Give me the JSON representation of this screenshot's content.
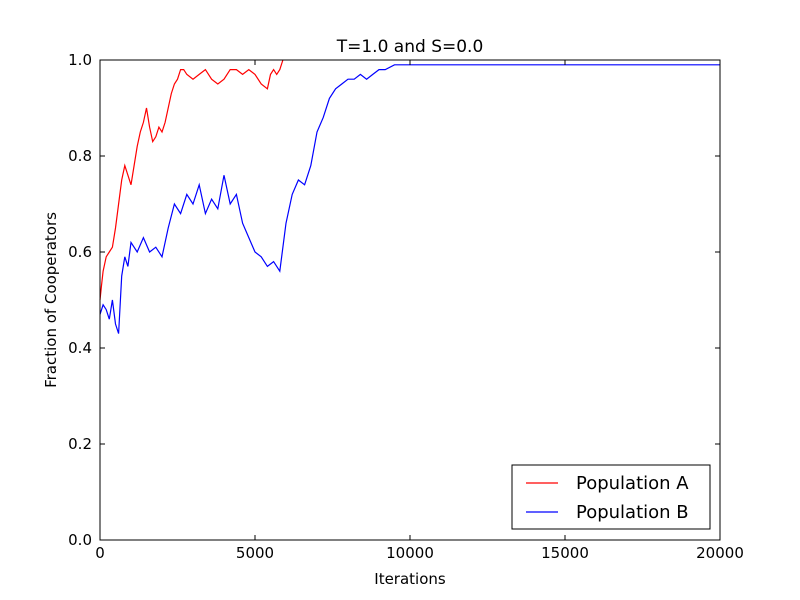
{
  "chart_data": {
    "type": "line",
    "title": "T=1.0 and S=0.0",
    "xlabel": "Iterations",
    "ylabel": "Fraction of Cooperators",
    "xlim": [
      0,
      20000
    ],
    "ylim": [
      0.0,
      1.0
    ],
    "xticks": [
      0,
      5000,
      10000,
      15000,
      20000
    ],
    "xtick_labels": [
      "0",
      "5000",
      "10000",
      "15000",
      "20000"
    ],
    "yticks": [
      0.0,
      0.2,
      0.4,
      0.6,
      0.8,
      1.0
    ],
    "ytick_labels": [
      "0.0",
      "0.2",
      "0.4",
      "0.6",
      "0.8",
      "1.0"
    ],
    "grid": false,
    "legend": "lower-right",
    "series": [
      {
        "name": "Population A",
        "color": "#ff0000",
        "x": [
          0,
          50,
          100,
          200,
          300,
          400,
          500,
          600,
          700,
          800,
          900,
          1000,
          1100,
          1200,
          1300,
          1400,
          1500,
          1600,
          1700,
          1800,
          1900,
          2000,
          2100,
          2200,
          2300,
          2400,
          2500,
          2600,
          2700,
          2800,
          3000,
          3200,
          3400,
          3600,
          3800,
          4000,
          4200,
          4400,
          4600,
          4800,
          5000,
          5200,
          5400,
          5500,
          5600,
          5700,
          5800,
          5900
        ],
        "y": [
          0.5,
          0.53,
          0.56,
          0.59,
          0.6,
          0.61,
          0.65,
          0.7,
          0.75,
          0.78,
          0.76,
          0.74,
          0.78,
          0.82,
          0.85,
          0.87,
          0.9,
          0.86,
          0.83,
          0.84,
          0.86,
          0.85,
          0.87,
          0.9,
          0.93,
          0.95,
          0.96,
          0.98,
          0.98,
          0.97,
          0.96,
          0.97,
          0.98,
          0.96,
          0.95,
          0.96,
          0.98,
          0.98,
          0.97,
          0.98,
          0.97,
          0.95,
          0.94,
          0.97,
          0.98,
          0.97,
          0.98,
          1.0
        ]
      },
      {
        "name": "Population B",
        "color": "#0000ff",
        "x": [
          0,
          100,
          200,
          300,
          400,
          500,
          600,
          700,
          800,
          900,
          1000,
          1200,
          1400,
          1600,
          1800,
          2000,
          2200,
          2400,
          2600,
          2800,
          3000,
          3200,
          3400,
          3600,
          3800,
          4000,
          4200,
          4400,
          4600,
          4800,
          5000,
          5200,
          5400,
          5600,
          5800,
          6000,
          6200,
          6400,
          6600,
          6800,
          7000,
          7200,
          7400,
          7600,
          7800,
          8000,
          8200,
          8400,
          8600,
          8800,
          9000,
          9200,
          9500,
          20000
        ],
        "y": [
          0.47,
          0.49,
          0.48,
          0.46,
          0.5,
          0.45,
          0.43,
          0.55,
          0.59,
          0.57,
          0.62,
          0.6,
          0.63,
          0.6,
          0.61,
          0.59,
          0.65,
          0.7,
          0.68,
          0.72,
          0.7,
          0.74,
          0.68,
          0.71,
          0.69,
          0.76,
          0.7,
          0.72,
          0.66,
          0.63,
          0.6,
          0.59,
          0.57,
          0.58,
          0.56,
          0.66,
          0.72,
          0.75,
          0.74,
          0.78,
          0.85,
          0.88,
          0.92,
          0.94,
          0.95,
          0.96,
          0.96,
          0.97,
          0.96,
          0.97,
          0.98,
          0.98,
          0.99,
          0.99
        ]
      }
    ]
  }
}
